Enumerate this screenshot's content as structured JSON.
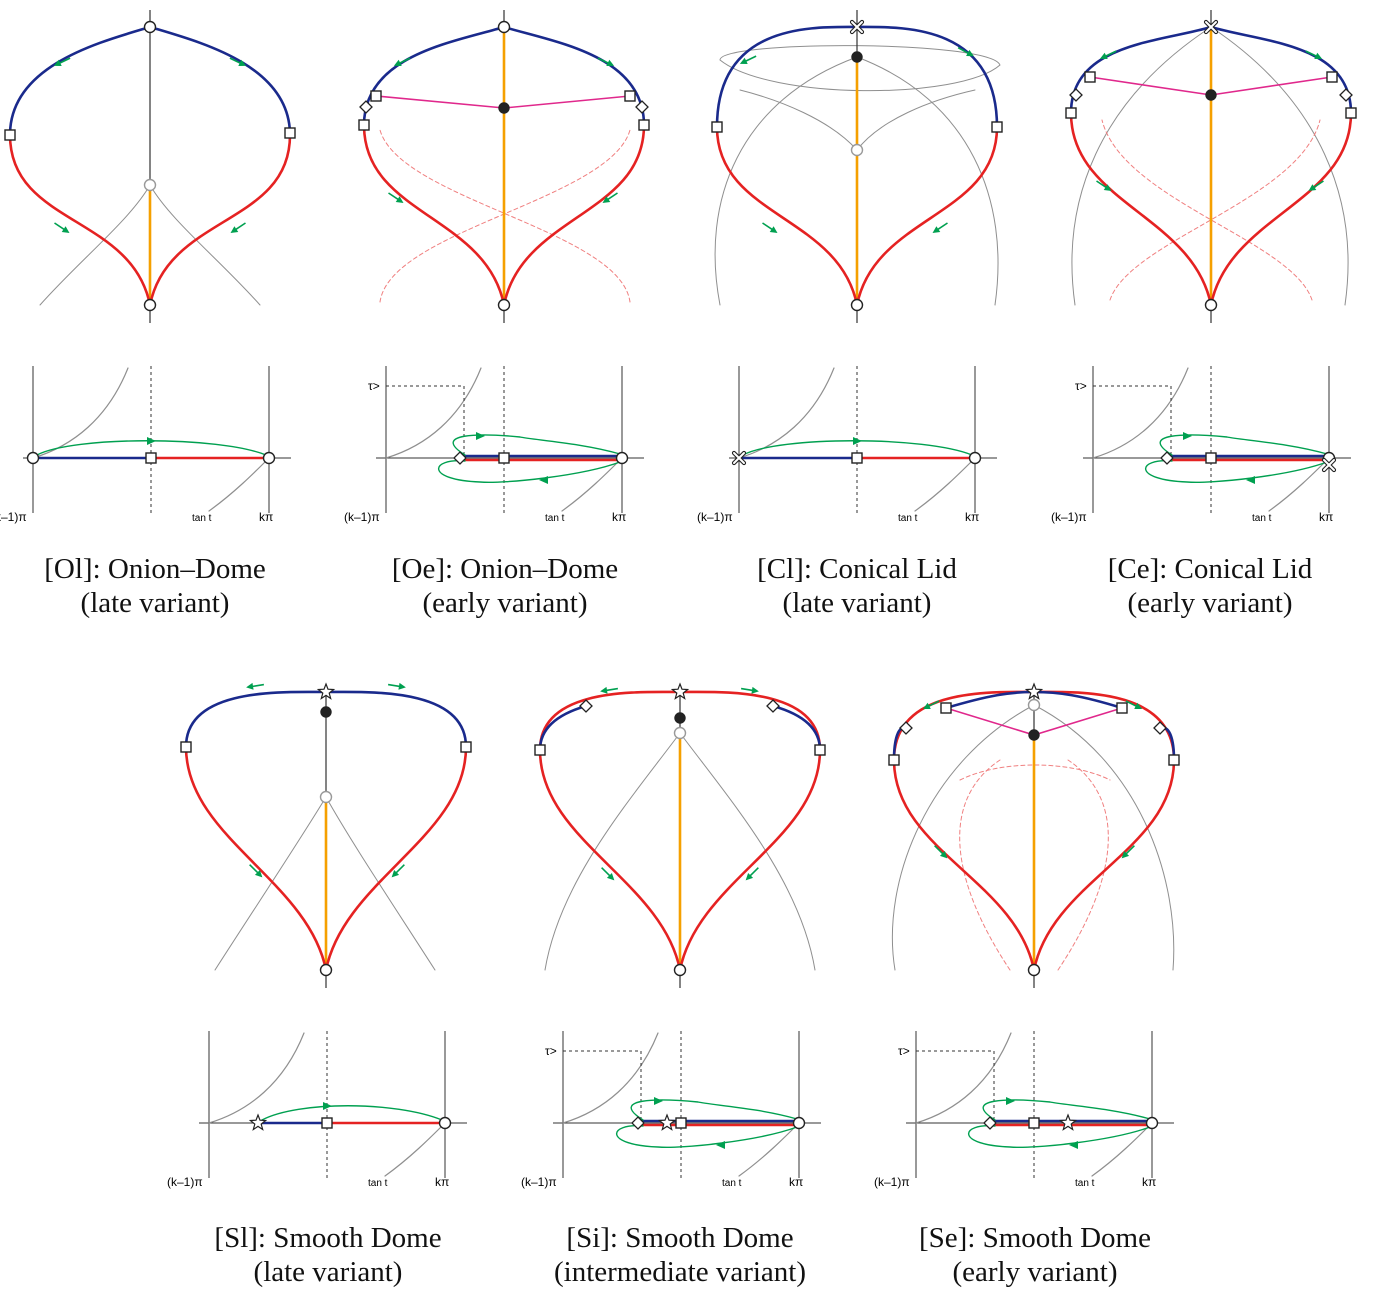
{
  "axis_labels": {
    "left": "(k–1)π",
    "right": "kπ",
    "tan": "tan t",
    "tau": "τ>"
  },
  "colors": {
    "blue": "#1a2a8c",
    "red": "#e52222",
    "orange": "#f5a000",
    "magenta": "#e0288c",
    "green": "#00a050",
    "gray": "#8f8f8f",
    "pink_dashed": "#f08080"
  },
  "panels": [
    {
      "code": "[Ol]",
      "title": "[Ol]: Onion–Dome",
      "variant": "(late variant)",
      "left_marker": "circle"
    },
    {
      "code": "[Oe]",
      "title": "[Oe]: Onion–Dome",
      "variant": "(early variant)",
      "left_marker": "diamond"
    },
    {
      "code": "[Cl]",
      "title": "[Cl]: Conical Lid",
      "variant": "(late variant)",
      "left_marker": "cross"
    },
    {
      "code": "[Ce]",
      "title": "[Ce]: Conical Lid",
      "variant": "(early variant)",
      "left_marker": "diamond"
    },
    {
      "code": "[Sl]",
      "title": "[Sl]: Smooth Dome",
      "variant": "(late variant)",
      "left_marker": "star"
    },
    {
      "code": "[Si]",
      "title": "[Si]: Smooth Dome",
      "variant": "(intermediate variant)",
      "left_marker": "diamond"
    },
    {
      "code": "[Se]",
      "title": "[Se]: Smooth Dome",
      "variant": "(early variant)",
      "left_marker": "diamond"
    }
  ]
}
